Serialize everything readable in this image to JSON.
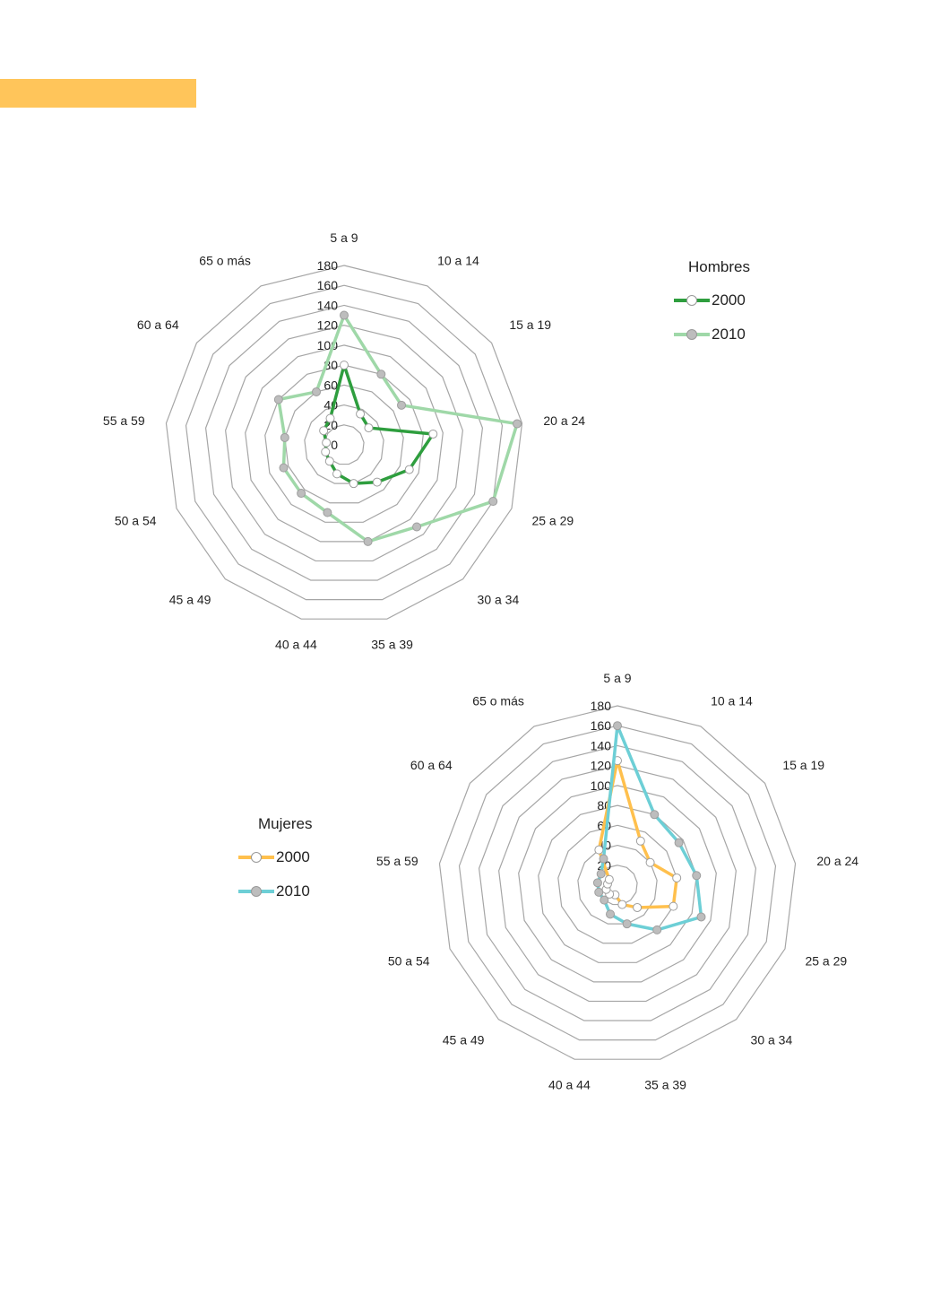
{
  "colors": {
    "band": "#ffc55a",
    "grid": "#a6a6a6"
  },
  "chart_data": [
    {
      "type": "radar",
      "categories": [
        "5 a 9",
        "10 a 14",
        "15 a 19",
        "20 a 24",
        "25 a 29",
        "30 a 34",
        "35 a 39",
        "40 a 44",
        "45 a 49",
        "50 a 54",
        "55 a 59",
        "60 a 64",
        "65 o más"
      ],
      "ticks": [
        0,
        20,
        40,
        60,
        80,
        100,
        120,
        140,
        160,
        180
      ],
      "rmax": 180,
      "legend_title": "Hombres",
      "legend_position": "top-right",
      "series": [
        {
          "name": "2000",
          "values": [
            80,
            35,
            30,
            90,
            70,
            50,
            40,
            30,
            22,
            20,
            18,
            25,
            30
          ],
          "color": "#2e9e3e",
          "marker": "#ffffff",
          "width": 3.5
        },
        {
          "name": "2010",
          "values": [
            130,
            80,
            70,
            175,
            160,
            110,
            100,
            70,
            65,
            65,
            60,
            80,
            60
          ],
          "color": "#9fd8a8",
          "marker": "#bdbdbd",
          "width": 3.5
        }
      ]
    },
    {
      "type": "radar",
      "categories": [
        "5 a 9",
        "10 a 14",
        "15 a 19",
        "20 a 24",
        "25 a 29",
        "30 a 34",
        "35 a 39",
        "40 a 44",
        "45 a 49",
        "50 a 54",
        "55 a 59",
        "60 a 64",
        "65 o más"
      ],
      "ticks": [
        0,
        20,
        40,
        60,
        80,
        100,
        120,
        140,
        160,
        180
      ],
      "rmax": 180,
      "legend_title": "Mujeres",
      "legend_position": "left",
      "series": [
        {
          "name": "2000",
          "values": [
            125,
            50,
            40,
            60,
            60,
            30,
            20,
            10,
            12,
            12,
            10,
            10,
            40
          ],
          "color": "#ffc04d",
          "marker": "#ffffff",
          "width": 3.5
        },
        {
          "name": "2010",
          "values": [
            160,
            80,
            75,
            80,
            90,
            60,
            40,
            30,
            20,
            20,
            20,
            20,
            30
          ],
          "color": "#6dcfd6",
          "marker": "#bdbdbd",
          "width": 3.5
        }
      ]
    }
  ]
}
